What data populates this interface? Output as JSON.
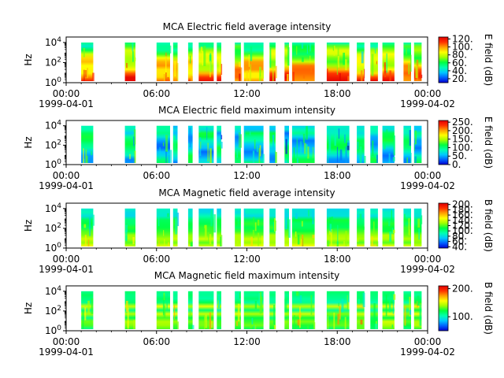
{
  "figure": {
    "colormap": [
      "#0000d0",
      "#0060ff",
      "#00c8ff",
      "#00ffb0",
      "#00ff40",
      "#a0ff00",
      "#ffff00",
      "#ffa000",
      "#ff3000",
      "#e00000"
    ]
  },
  "chart_data": [
    {
      "type": "heatmap",
      "title": "MCA  Electric field average intensity",
      "ylabel": "Hz",
      "ylabel_scale": "log",
      "y_ticks": [
        "10^4",
        "10^2",
        "10^0"
      ],
      "x_ticks": [
        "00:00",
        "06:00",
        "12:00",
        "18:00",
        "00:00"
      ],
      "x_tick_dates": [
        "1999-04-01",
        "",
        "",
        "",
        "1999-04-02"
      ],
      "xlim": [
        "1999-04-01T00:00",
        "1999-04-02T00:00"
      ],
      "colorbar_label": "E field (dB)",
      "colorbar_ticks": [
        "120.",
        "100.",
        "80.",
        "60.",
        "40.",
        "20."
      ],
      "colorbar_range": [
        10,
        125
      ],
      "style": "avg",
      "data_intervals_hours": [
        [
          1.0,
          1.8
        ],
        [
          3.9,
          4.6
        ],
        [
          6.0,
          6.9
        ],
        [
          7.1,
          7.4
        ],
        [
          8.1,
          8.4
        ],
        [
          8.8,
          9.8
        ],
        [
          10.0,
          10.3
        ],
        [
          11.2,
          11.6
        ],
        [
          11.8,
          13.1
        ],
        [
          13.5,
          13.9
        ],
        [
          14.5,
          14.8
        ],
        [
          15.0,
          16.5
        ],
        [
          17.3,
          18.8
        ],
        [
          19.3,
          19.8
        ],
        [
          20.2,
          20.7
        ],
        [
          21.0,
          21.8
        ],
        [
          22.4,
          22.9
        ],
        [
          23.1,
          23.6
        ]
      ]
    },
    {
      "type": "heatmap",
      "title": "MCA  Electric field maximum intensity",
      "ylabel": "Hz",
      "ylabel_scale": "log",
      "y_ticks": [
        "10^4",
        "10^2",
        "10^0"
      ],
      "x_ticks": [
        "00:00",
        "06:00",
        "12:00",
        "18:00",
        "00:00"
      ],
      "x_tick_dates": [
        "1999-04-01",
        "",
        "",
        "",
        "1999-04-02"
      ],
      "xlim": [
        "1999-04-01T00:00",
        "1999-04-02T00:00"
      ],
      "colorbar_label": "E field (dB)",
      "colorbar_ticks": [
        "250.",
        "200.",
        "150.",
        "100.",
        "50.",
        "0."
      ],
      "colorbar_range": [
        0,
        260
      ],
      "style": "emax",
      "data_intervals_hours": [
        [
          1.0,
          1.8
        ],
        [
          3.9,
          4.6
        ],
        [
          6.0,
          6.9
        ],
        [
          7.1,
          7.4
        ],
        [
          8.1,
          8.4
        ],
        [
          8.8,
          9.8
        ],
        [
          10.0,
          10.3
        ],
        [
          11.2,
          11.6
        ],
        [
          11.8,
          13.1
        ],
        [
          13.5,
          13.9
        ],
        [
          14.5,
          14.8
        ],
        [
          15.0,
          16.5
        ],
        [
          17.3,
          18.8
        ],
        [
          19.3,
          19.8
        ],
        [
          20.2,
          20.7
        ],
        [
          21.0,
          21.8
        ],
        [
          22.4,
          22.9
        ],
        [
          23.1,
          23.6
        ]
      ]
    },
    {
      "type": "heatmap",
      "title": "MCA  Magnetic field average intensity",
      "ylabel": "Hz",
      "ylabel_scale": "log",
      "y_ticks": [
        "10^4",
        "10^2",
        "10^0"
      ],
      "x_ticks": [
        "00:00",
        "06:00",
        "12:00",
        "18:00",
        "00:00"
      ],
      "x_tick_dates": [
        "1999-04-01",
        "",
        "",
        "",
        "1999-04-02"
      ],
      "xlim": [
        "1999-04-01T00:00",
        "1999-04-02T00:00"
      ],
      "colorbar_label": "B field (dB)",
      "colorbar_ticks": [
        "200.",
        "180.",
        "160.",
        "140.",
        "120.",
        "100.",
        "80.",
        "60.",
        "40."
      ],
      "colorbar_range": [
        35,
        205
      ],
      "style": "bavg",
      "data_intervals_hours": [
        [
          1.0,
          1.8
        ],
        [
          3.9,
          4.6
        ],
        [
          6.0,
          6.9
        ],
        [
          7.1,
          7.4
        ],
        [
          8.1,
          8.4
        ],
        [
          8.8,
          9.8
        ],
        [
          10.0,
          10.3
        ],
        [
          11.2,
          11.6
        ],
        [
          11.8,
          13.1
        ],
        [
          13.5,
          13.9
        ],
        [
          14.5,
          14.8
        ],
        [
          15.0,
          16.5
        ],
        [
          17.3,
          18.8
        ],
        [
          19.3,
          19.8
        ],
        [
          20.2,
          20.7
        ],
        [
          21.0,
          21.8
        ],
        [
          22.4,
          22.9
        ],
        [
          23.1,
          23.6
        ]
      ]
    },
    {
      "type": "heatmap",
      "title": "MCA  Magnetic field maximum intensity",
      "ylabel": "Hz",
      "ylabel_scale": "log",
      "y_ticks": [
        "10^4",
        "10^2",
        "10^0"
      ],
      "x_ticks": [
        "00:00",
        "06:00",
        "12:00",
        "18:00",
        "00:00"
      ],
      "x_tick_dates": [
        "1999-04-01",
        "",
        "",
        "",
        "1999-04-02"
      ],
      "xlim": [
        "1999-04-01T00:00",
        "1999-04-02T00:00"
      ],
      "colorbar_label": "B field (dB)",
      "colorbar_ticks": [
        "200.",
        "100."
      ],
      "colorbar_range": [
        50,
        210
      ],
      "style": "bmax",
      "data_intervals_hours": [
        [
          1.0,
          1.8
        ],
        [
          3.9,
          4.6
        ],
        [
          6.0,
          6.9
        ],
        [
          7.1,
          7.4
        ],
        [
          8.1,
          8.4
        ],
        [
          8.8,
          9.8
        ],
        [
          10.0,
          10.3
        ],
        [
          11.2,
          11.6
        ],
        [
          11.8,
          13.1
        ],
        [
          13.5,
          13.9
        ],
        [
          14.5,
          14.8
        ],
        [
          15.0,
          16.5
        ],
        [
          17.3,
          18.8
        ],
        [
          19.3,
          19.8
        ],
        [
          20.2,
          20.7
        ],
        [
          21.0,
          21.8
        ],
        [
          22.4,
          22.9
        ],
        [
          23.1,
          23.6
        ]
      ]
    }
  ]
}
